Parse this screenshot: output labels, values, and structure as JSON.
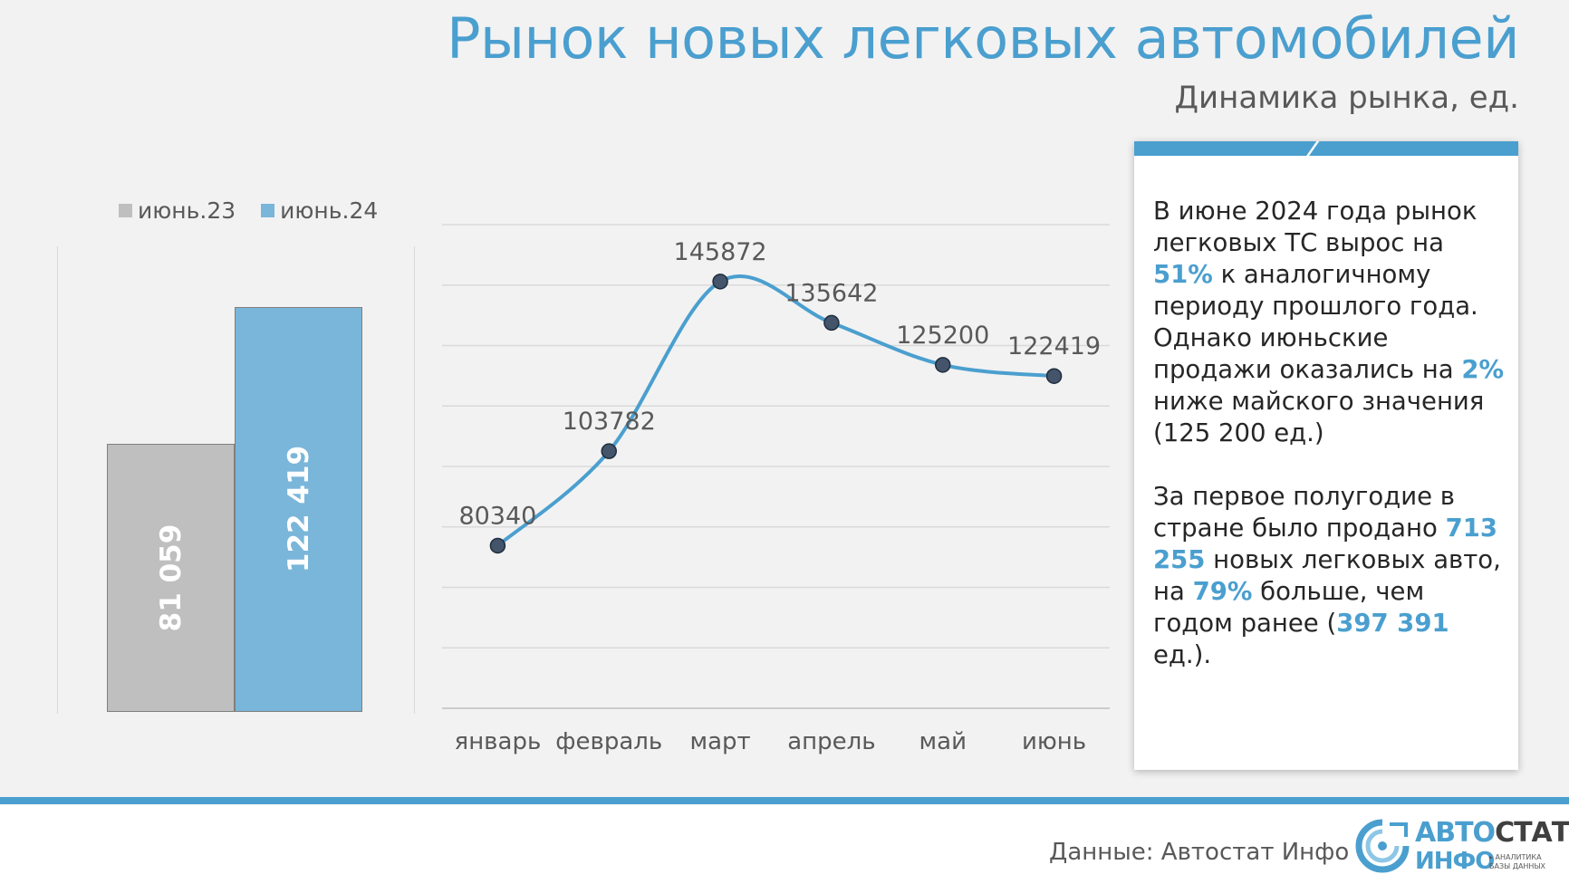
{
  "header": {
    "title": "Рынок новых легковых автомобилей",
    "subtitle": "Динамика рынка, ед."
  },
  "legend": {
    "items": [
      {
        "label": "июнь.23",
        "color": "#bfbfbf"
      },
      {
        "label": "июнь.24",
        "color": "#7ab6d9"
      }
    ]
  },
  "chart_data": [
    {
      "type": "bar",
      "categories": [
        "июнь.23",
        "июнь.24"
      ],
      "values": [
        81059,
        122419
      ],
      "value_labels": [
        "81 059",
        "122 419"
      ],
      "colors": [
        "#bfbfbf",
        "#7ab6d9"
      ],
      "legend_placement": "top-left"
    },
    {
      "type": "line",
      "categories": [
        "январь",
        "февраль",
        "март",
        "апрель",
        "май",
        "июнь"
      ],
      "values": [
        80340,
        103782,
        145872,
        135642,
        125200,
        122419
      ],
      "value_labels": [
        "80340",
        "103782",
        "145872",
        "135642",
        "125200",
        "122419"
      ],
      "color": "#4a9fcf",
      "ylim": [
        40000,
        160000
      ],
      "grid": true
    }
  ],
  "note": {
    "p1": {
      "t1": "В июне 2024 года рынок легковых ТС вырос на ",
      "h1": "51%",
      "t2": " к аналогичному периоду прошлого года. Однако июньские продажи оказались на ",
      "h2": "2%",
      "t3": " ниже майского значения (125 200 ед.)"
    },
    "p2": {
      "t1": "За первое полугодие в стране было продано ",
      "h1": "713 255",
      "t2": " новых легковых авто, на ",
      "h2": "79%",
      "t3": " больше, чем годом ранее (",
      "h3": "397 391",
      "t4": " ед.)."
    }
  },
  "footer": {
    "source": "Данные: Автостат Инфо",
    "logo": {
      "line1a": "АВТО",
      "line1b": "СТАТ",
      "line2": "ИНФО",
      "tag1": "▸ АНАЛИТИКА",
      "tag2": "БАЗЫ ДАННЫХ"
    }
  },
  "colors": {
    "accent": "#4a9fcf",
    "bar_2023": "#bfbfbf",
    "bar_2024": "#7ab6d9"
  }
}
